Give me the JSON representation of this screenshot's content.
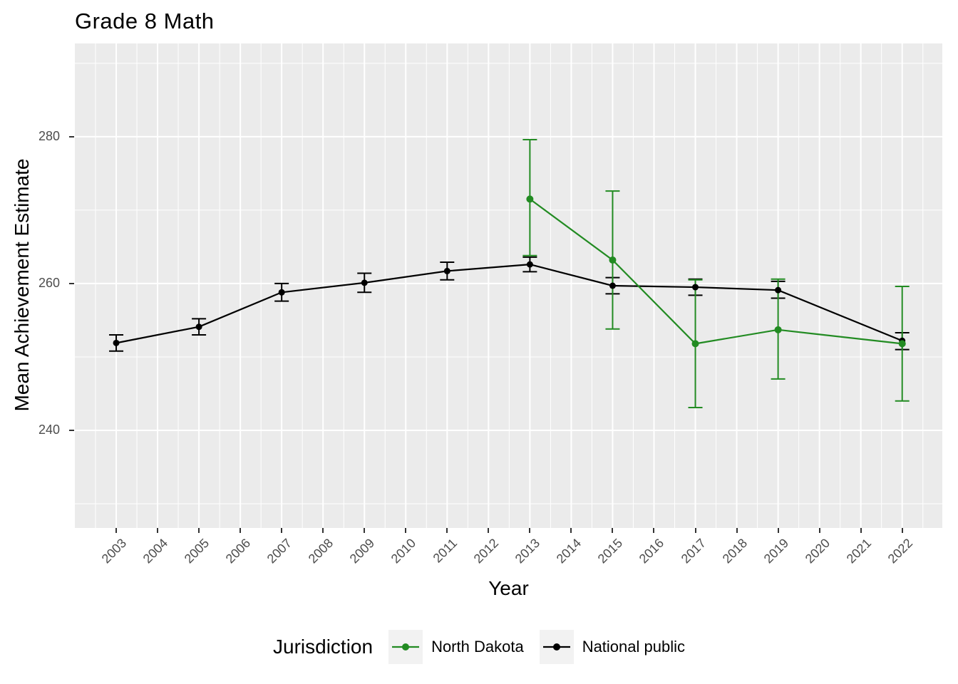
{
  "title": "Grade 8 Math",
  "xlabel": "Year",
  "ylabel": "Mean Achievement Estimate",
  "legend": {
    "title": "Jurisdiction",
    "entries": [
      {
        "label": "North Dakota",
        "color": "#228B22"
      },
      {
        "label": "National public",
        "color": "#000000"
      }
    ]
  },
  "colors": {
    "panel_background": "#EBEBEB",
    "gridline": "#FFFFFF",
    "tick_text": "#4D4D4D",
    "tick_mark": "#333333",
    "north_dakota": "#228B22",
    "national_public": "#000000"
  },
  "chart_data": {
    "type": "line",
    "title": "Grade 8 Math",
    "xlabel": "Year",
    "ylabel": "Mean Achievement Estimate",
    "legend_position": "bottom",
    "grid": "on",
    "error_bars": true,
    "x_ticks": [
      2003,
      2004,
      2005,
      2006,
      2007,
      2008,
      2009,
      2010,
      2011,
      2012,
      2013,
      2014,
      2015,
      2016,
      2017,
      2018,
      2019,
      2020,
      2021,
      2022
    ],
    "y_ticks": [
      240,
      260,
      280
    ],
    "xlim": [
      2002.0,
      2022.97
    ],
    "ylim": [
      226.7,
      292.7
    ],
    "series": [
      {
        "name": "North Dakota",
        "color": "#228B22",
        "points": [
          {
            "x": 2013,
            "y": 271.5,
            "lo": 263.8,
            "hi": 279.6
          },
          {
            "x": 2015,
            "y": 263.2,
            "lo": 253.8,
            "hi": 272.6
          },
          {
            "x": 2017,
            "y": 251.8,
            "lo": 243.1,
            "hi": 260.5
          },
          {
            "x": 2019,
            "y": 253.7,
            "lo": 247.0,
            "hi": 260.6
          },
          {
            "x": 2022,
            "y": 251.8,
            "lo": 244.0,
            "hi": 259.6
          }
        ]
      },
      {
        "name": "National public",
        "color": "#000000",
        "points": [
          {
            "x": 2003,
            "y": 251.9,
            "lo": 250.8,
            "hi": 253.0
          },
          {
            "x": 2005,
            "y": 254.1,
            "lo": 253.0,
            "hi": 255.2
          },
          {
            "x": 2007,
            "y": 258.8,
            "lo": 257.6,
            "hi": 260.0
          },
          {
            "x": 2009,
            "y": 260.1,
            "lo": 258.8,
            "hi": 261.4
          },
          {
            "x": 2011,
            "y": 261.7,
            "lo": 260.5,
            "hi": 262.9
          },
          {
            "x": 2013,
            "y": 262.6,
            "lo": 261.6,
            "hi": 263.6
          },
          {
            "x": 2015,
            "y": 259.7,
            "lo": 258.6,
            "hi": 260.8
          },
          {
            "x": 2017,
            "y": 259.5,
            "lo": 258.4,
            "hi": 260.6
          },
          {
            "x": 2019,
            "y": 259.1,
            "lo": 258.0,
            "hi": 260.3
          },
          {
            "x": 2022,
            "y": 252.2,
            "lo": 251.0,
            "hi": 253.3
          }
        ]
      }
    ]
  }
}
